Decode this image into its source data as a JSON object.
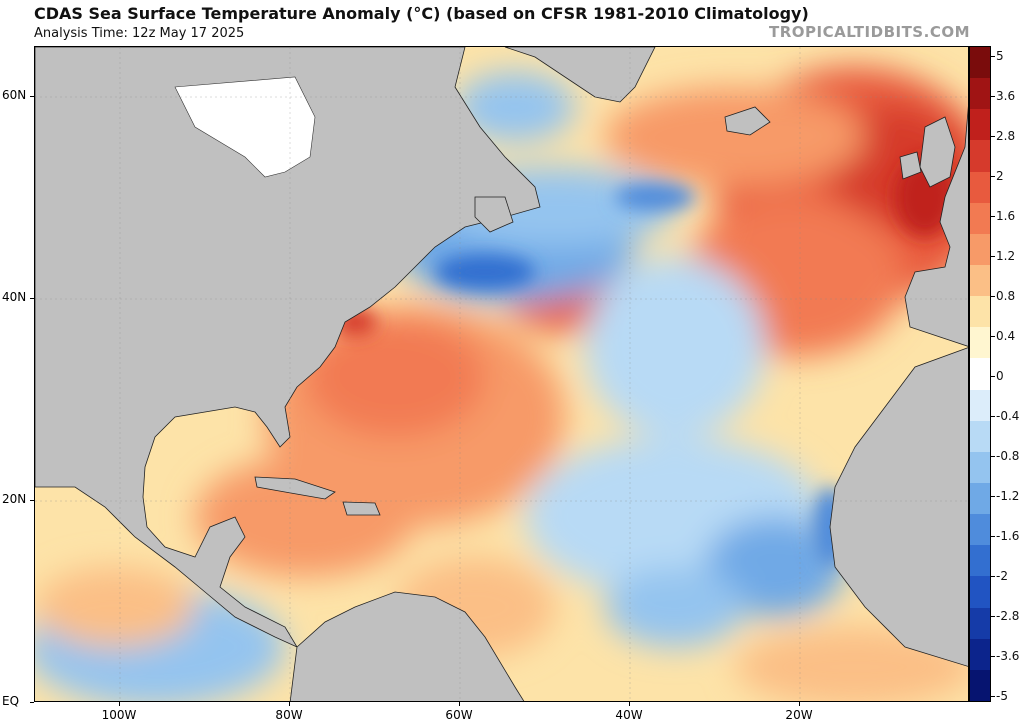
{
  "header": {
    "title": "CDAS Sea Surface Temperature Anomaly (°C) (based on CFSR 1981-2010 Climatology)",
    "analysis_time": "Analysis Time: 12z May 17 2025",
    "credit": "TROPICALTIDBITS.COM"
  },
  "map": {
    "extent": {
      "lon_min": -110,
      "lon_max": 0,
      "lat_min": 0,
      "lat_max": 65
    },
    "lat_labels": [
      {
        "label": "60N",
        "lat": 60
      },
      {
        "label": "40N",
        "lat": 40
      },
      {
        "label": "20N",
        "lat": 20
      },
      {
        "label": "EQ",
        "lat": 0
      }
    ],
    "lon_labels": [
      {
        "label": "100W",
        "lon": -100
      },
      {
        "label": "80W",
        "lon": -80
      },
      {
        "label": "60W",
        "lon": -60
      },
      {
        "label": "40W",
        "lon": -40
      },
      {
        "label": "20W",
        "lon": -20
      }
    ],
    "land_color": "#c0c0c0",
    "ice_color": "#ffffff"
  },
  "colorbar": {
    "labels": [
      "5",
      "3.6",
      "2.8",
      "2",
      "1.6",
      "1.2",
      "0.8",
      "0.4",
      "0",
      "-0.4",
      "-0.8",
      "-1.2",
      "-1.6",
      "-2",
      "-2.8",
      "-3.6",
      "-5"
    ],
    "colors": [
      "#7a0c0c",
      "#a01414",
      "#c0201c",
      "#d63a2c",
      "#e85a3e",
      "#f27a52",
      "#f79a68",
      "#fbbf86",
      "#fde3a8",
      "#fff6d0",
      "#ffffff",
      "#dcedfa",
      "#b8daf5",
      "#94c4ef",
      "#6fa9e6",
      "#4f8cdc",
      "#336fd0",
      "#2154c2",
      "#153ba8",
      "#0c248c",
      "#061470"
    ]
  }
}
